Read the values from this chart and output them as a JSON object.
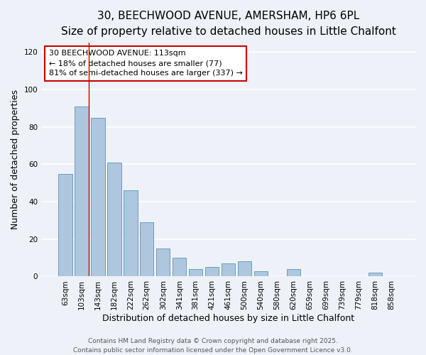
{
  "title_line1": "30, BEECHWOOD AVENUE, AMERSHAM, HP6 6PL",
  "title_line2": "Size of property relative to detached houses in Little Chalfont",
  "bar_labels": [
    "63sqm",
    "103sqm",
    "143sqm",
    "182sqm",
    "222sqm",
    "262sqm",
    "302sqm",
    "341sqm",
    "381sqm",
    "421sqm",
    "461sqm",
    "500sqm",
    "540sqm",
    "580sqm",
    "620sqm",
    "659sqm",
    "699sqm",
    "739sqm",
    "779sqm",
    "818sqm",
    "858sqm"
  ],
  "bar_values": [
    55,
    91,
    85,
    61,
    46,
    29,
    15,
    10,
    4,
    5,
    7,
    8,
    3,
    0,
    4,
    0,
    0,
    0,
    0,
    2,
    0
  ],
  "bar_color": "#aec6de",
  "bar_edge_color": "#6a9ec0",
  "ylabel": "Number of detached properties",
  "xlabel": "Distribution of detached houses by size in Little Chalfont",
  "ylim": [
    0,
    125
  ],
  "yticks": [
    0,
    20,
    40,
    60,
    80,
    100,
    120
  ],
  "annotation_text_line1": "30 BEECHWOOD AVENUE: 113sqm",
  "annotation_text_line2": "← 18% of detached houses are smaller (77)",
  "annotation_text_line3": "81% of semi-detached houses are larger (337) →",
  "footer_line1": "Contains HM Land Registry data © Crown copyright and database right 2025.",
  "footer_line2": "Contains public sector information licensed under the Open Government Licence v3.0.",
  "bg_color": "#eef2f8",
  "grid_color": "#ffffff",
  "annotation_box_color": "#ffffff",
  "annotation_box_edge": "#cc0000",
  "red_line_color": "#cc0000",
  "title_fontsize": 11,
  "subtitle_fontsize": 10,
  "axis_label_fontsize": 9,
  "tick_fontsize": 7.5,
  "annotation_fontsize": 8,
  "footer_fontsize": 6.5,
  "red_line_x": 1.43
}
